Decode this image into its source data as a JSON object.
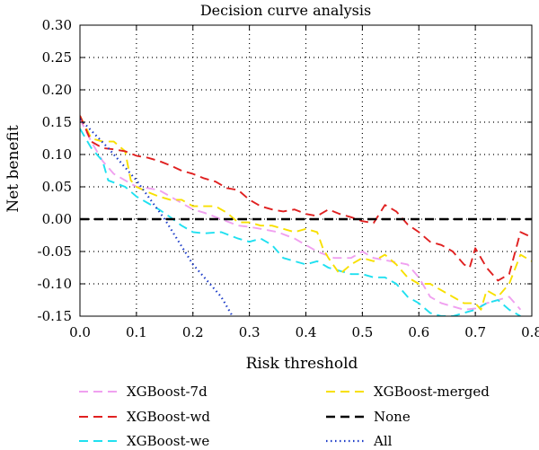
{
  "chart_data": {
    "type": "line",
    "title": "Decision curve analysis",
    "xlabel": "Risk threshold",
    "ylabel": "Net benefit",
    "xlim": [
      0.0,
      0.8
    ],
    "ylim": [
      -0.15,
      0.3
    ],
    "xticks": [
      "0.0",
      "0.1",
      "0.2",
      "0.3",
      "0.4",
      "0.5",
      "0.6",
      "0.7",
      "0.8"
    ],
    "yticks": [
      "-0.15",
      "-0.10",
      "-0.05",
      "0.00",
      "0.05",
      "0.10",
      "0.15",
      "0.20",
      "0.25",
      "0.30"
    ],
    "grid": true,
    "legend_position": "bottom",
    "series": [
      {
        "name": "XGBoost-7d",
        "color": "#f0a0f0",
        "dash": "dashed",
        "points": [
          [
            0.0,
            0.155
          ],
          [
            0.02,
            0.12
          ],
          [
            0.04,
            0.09
          ],
          [
            0.06,
            0.07
          ],
          [
            0.08,
            0.06
          ],
          [
            0.1,
            0.05
          ],
          [
            0.12,
            0.048
          ],
          [
            0.14,
            0.045
          ],
          [
            0.16,
            0.035
          ],
          [
            0.18,
            0.025
          ],
          [
            0.2,
            0.015
          ],
          [
            0.22,
            0.01
          ],
          [
            0.25,
            0.0
          ],
          [
            0.28,
            -0.01
          ],
          [
            0.3,
            -0.012
          ],
          [
            0.32,
            -0.015
          ],
          [
            0.35,
            -0.02
          ],
          [
            0.38,
            -0.03
          ],
          [
            0.4,
            -0.04
          ],
          [
            0.42,
            -0.05
          ],
          [
            0.45,
            -0.06
          ],
          [
            0.48,
            -0.06
          ],
          [
            0.5,
            -0.05
          ],
          [
            0.52,
            -0.06
          ],
          [
            0.55,
            -0.065
          ],
          [
            0.58,
            -0.07
          ],
          [
            0.6,
            -0.09
          ],
          [
            0.62,
            -0.12
          ],
          [
            0.64,
            -0.13
          ],
          [
            0.66,
            -0.135
          ],
          [
            0.68,
            -0.14
          ],
          [
            0.7,
            -0.138
          ],
          [
            0.72,
            -0.13
          ],
          [
            0.74,
            -0.125
          ],
          [
            0.76,
            -0.12
          ],
          [
            0.78,
            -0.14
          ]
        ]
      },
      {
        "name": "XGBoost-wd",
        "color": "#e02020",
        "dash": "dashed",
        "points": [
          [
            0.0,
            0.16
          ],
          [
            0.02,
            0.12
          ],
          [
            0.04,
            0.11
          ],
          [
            0.06,
            0.108
          ],
          [
            0.08,
            0.105
          ],
          [
            0.1,
            0.098
          ],
          [
            0.12,
            0.095
          ],
          [
            0.14,
            0.09
          ],
          [
            0.16,
            0.083
          ],
          [
            0.18,
            0.075
          ],
          [
            0.2,
            0.07
          ],
          [
            0.22,
            0.063
          ],
          [
            0.24,
            0.058
          ],
          [
            0.26,
            0.048
          ],
          [
            0.28,
            0.045
          ],
          [
            0.3,
            0.03
          ],
          [
            0.32,
            0.02
          ],
          [
            0.34,
            0.015
          ],
          [
            0.36,
            0.012
          ],
          [
            0.38,
            0.015
          ],
          [
            0.4,
            0.008
          ],
          [
            0.42,
            0.005
          ],
          [
            0.44,
            0.015
          ],
          [
            0.46,
            0.008
          ],
          [
            0.48,
            0.003
          ],
          [
            0.5,
            -0.003
          ],
          [
            0.52,
            -0.006
          ],
          [
            0.54,
            0.022
          ],
          [
            0.56,
            0.012
          ],
          [
            0.58,
            -0.008
          ],
          [
            0.6,
            -0.02
          ],
          [
            0.62,
            -0.035
          ],
          [
            0.64,
            -0.04
          ],
          [
            0.66,
            -0.05
          ],
          [
            0.68,
            -0.07
          ],
          [
            0.69,
            -0.075
          ],
          [
            0.7,
            -0.045
          ],
          [
            0.72,
            -0.075
          ],
          [
            0.74,
            -0.095
          ],
          [
            0.76,
            -0.085
          ],
          [
            0.78,
            -0.02
          ],
          [
            0.8,
            -0.028
          ]
        ]
      },
      {
        "name": "XGBoost-we",
        "color": "#20e0f0",
        "dash": "dashed",
        "points": [
          [
            0.0,
            0.14
          ],
          [
            0.02,
            0.11
          ],
          [
            0.04,
            0.09
          ],
          [
            0.05,
            0.06
          ],
          [
            0.08,
            0.05
          ],
          [
            0.1,
            0.035
          ],
          [
            0.12,
            0.025
          ],
          [
            0.14,
            0.015
          ],
          [
            0.16,
            0.003
          ],
          [
            0.18,
            -0.01
          ],
          [
            0.2,
            -0.02
          ],
          [
            0.22,
            -0.022
          ],
          [
            0.25,
            -0.02
          ],
          [
            0.28,
            -0.03
          ],
          [
            0.3,
            -0.035
          ],
          [
            0.32,
            -0.03
          ],
          [
            0.34,
            -0.04
          ],
          [
            0.36,
            -0.06
          ],
          [
            0.38,
            -0.065
          ],
          [
            0.4,
            -0.07
          ],
          [
            0.42,
            -0.065
          ],
          [
            0.44,
            -0.075
          ],
          [
            0.46,
            -0.08
          ],
          [
            0.48,
            -0.085
          ],
          [
            0.5,
            -0.085
          ],
          [
            0.52,
            -0.09
          ],
          [
            0.54,
            -0.09
          ],
          [
            0.56,
            -0.1
          ],
          [
            0.58,
            -0.12
          ],
          [
            0.6,
            -0.13
          ],
          [
            0.62,
            -0.145
          ],
          [
            0.64,
            -0.15
          ],
          [
            0.66,
            -0.15
          ],
          [
            0.7,
            -0.14
          ],
          [
            0.72,
            -0.13
          ],
          [
            0.74,
            -0.125
          ],
          [
            0.76,
            -0.14
          ],
          [
            0.78,
            -0.15
          ]
        ]
      },
      {
        "name": "XGBoost-merged",
        "color": "#f8e000",
        "dash": "dashed",
        "points": [
          [
            0.0,
            0.16
          ],
          [
            0.02,
            0.125
          ],
          [
            0.04,
            0.12
          ],
          [
            0.06,
            0.12
          ],
          [
            0.08,
            0.105
          ],
          [
            0.09,
            0.06
          ],
          [
            0.1,
            0.05
          ],
          [
            0.12,
            0.042
          ],
          [
            0.14,
            0.035
          ],
          [
            0.16,
            0.03
          ],
          [
            0.18,
            0.03
          ],
          [
            0.2,
            0.02
          ],
          [
            0.22,
            0.02
          ],
          [
            0.24,
            0.02
          ],
          [
            0.26,
            0.01
          ],
          [
            0.28,
            -0.005
          ],
          [
            0.3,
            -0.005
          ],
          [
            0.32,
            -0.01
          ],
          [
            0.34,
            -0.01
          ],
          [
            0.36,
            -0.015
          ],
          [
            0.38,
            -0.02
          ],
          [
            0.4,
            -0.015
          ],
          [
            0.42,
            -0.02
          ],
          [
            0.43,
            -0.045
          ],
          [
            0.44,
            -0.06
          ],
          [
            0.46,
            -0.085
          ],
          [
            0.48,
            -0.07
          ],
          [
            0.5,
            -0.06
          ],
          [
            0.52,
            -0.065
          ],
          [
            0.54,
            -0.055
          ],
          [
            0.56,
            -0.07
          ],
          [
            0.58,
            -0.09
          ],
          [
            0.6,
            -0.1
          ],
          [
            0.62,
            -0.1
          ],
          [
            0.64,
            -0.11
          ],
          [
            0.66,
            -0.12
          ],
          [
            0.68,
            -0.13
          ],
          [
            0.7,
            -0.13
          ],
          [
            0.71,
            -0.14
          ],
          [
            0.72,
            -0.11
          ],
          [
            0.74,
            -0.12
          ],
          [
            0.76,
            -0.1
          ],
          [
            0.78,
            -0.055
          ],
          [
            0.8,
            -0.065
          ]
        ]
      },
      {
        "name": "None",
        "color": "#000000",
        "dash": "dashed-thick",
        "points": [
          [
            0.0,
            0.0
          ],
          [
            0.8,
            0.0
          ]
        ]
      },
      {
        "name": "All",
        "color": "#1c3cc8",
        "dash": "dotted",
        "points": [
          [
            0.0,
            0.155
          ],
          [
            0.05,
            0.11
          ],
          [
            0.1,
            0.06
          ],
          [
            0.15,
            0.0
          ],
          [
            0.2,
            -0.07
          ],
          [
            0.25,
            -0.12
          ],
          [
            0.27,
            -0.15
          ]
        ]
      }
    ],
    "legend_order": [
      "XGBoost-7d",
      "XGBoost-wd",
      "XGBoost-we",
      "XGBoost-merged",
      "None",
      "All"
    ]
  }
}
